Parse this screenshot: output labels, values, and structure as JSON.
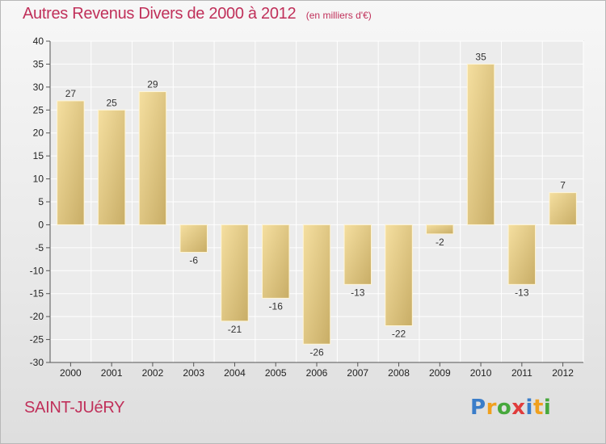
{
  "chart_data": {
    "type": "bar",
    "title": "Autres Revenus Divers de 2000 à 2012",
    "subtitle": "(en milliers d'€)",
    "categories": [
      "2000",
      "2001",
      "2002",
      "2003",
      "2004",
      "2005",
      "2006",
      "2007",
      "2008",
      "2009",
      "2010",
      "2011",
      "2012"
    ],
    "values": [
      27,
      25,
      29,
      -6,
      -21,
      -16,
      -26,
      -13,
      -22,
      -2,
      35,
      -13,
      7
    ],
    "ylim": [
      -30,
      40
    ],
    "yticks": [
      -30,
      -25,
      -20,
      -15,
      -10,
      -5,
      0,
      5,
      10,
      15,
      20,
      25,
      30,
      35,
      40
    ],
    "grid": true,
    "bar_colors": {
      "light": "#f5dfa0",
      "dark": "#c8ad66"
    }
  },
  "footer": {
    "city": "SAINT-JUéRY"
  },
  "logo": {
    "letters": [
      "P",
      "r",
      "o",
      "x",
      "i",
      "t",
      "i"
    ],
    "colors": [
      "#3a7dc9",
      "#f0a01e",
      "#47a83c",
      "#e03c3c",
      "#3a7dc9",
      "#f0a01e",
      "#47a83c"
    ]
  }
}
